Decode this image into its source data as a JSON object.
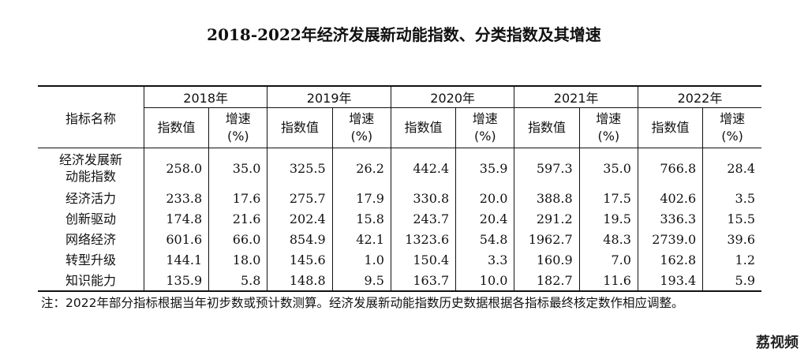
{
  "title": "2018-2022年经济发展新动能指数、分类指数及其增速",
  "header": {
    "name_label": "指标名称",
    "years": [
      "2018年",
      "2019年",
      "2020年",
      "2021年",
      "2022年"
    ],
    "value_label": "指数值",
    "speed_label_line1": "增速",
    "speed_label_line2": "(%)"
  },
  "rows": [
    {
      "name": "经济发展新动能指数",
      "name_line1": "经济发展新",
      "name_line2": "动能指数",
      "cells": [
        "258.0",
        "35.0",
        "325.5",
        "26.2",
        "442.4",
        "35.9",
        "597.3",
        "35.0",
        "766.8",
        "28.4"
      ]
    },
    {
      "name": "经济活力",
      "cells": [
        "233.8",
        "17.6",
        "275.7",
        "17.9",
        "330.8",
        "20.0",
        "388.8",
        "17.5",
        "402.6",
        "3.5"
      ]
    },
    {
      "name": "创新驱动",
      "cells": [
        "174.8",
        "21.6",
        "202.4",
        "15.8",
        "243.7",
        "20.4",
        "291.2",
        "19.5",
        "336.3",
        "15.5"
      ]
    },
    {
      "name": "网络经济",
      "cells": [
        "601.6",
        "66.0",
        "854.9",
        "42.1",
        "1323.6",
        "54.8",
        "1962.7",
        "48.3",
        "2739.0",
        "39.6"
      ]
    },
    {
      "name": "转型升级",
      "cells": [
        "144.1",
        "18.0",
        "145.6",
        "1.0",
        "150.4",
        "3.3",
        "160.9",
        "7.0",
        "162.8",
        "1.2"
      ]
    },
    {
      "name": "知识能力",
      "cells": [
        "135.9",
        "5.8",
        "148.8",
        "9.5",
        "163.7",
        "10.0",
        "182.7",
        "11.6",
        "193.4",
        "5.9"
      ]
    }
  ],
  "note": "注：2022年部分指标根据当年初步数或预计数测算。经济发展新动能指数历史数据根据各指标最终核定数作相应调整。",
  "watermark": "荔视频"
}
